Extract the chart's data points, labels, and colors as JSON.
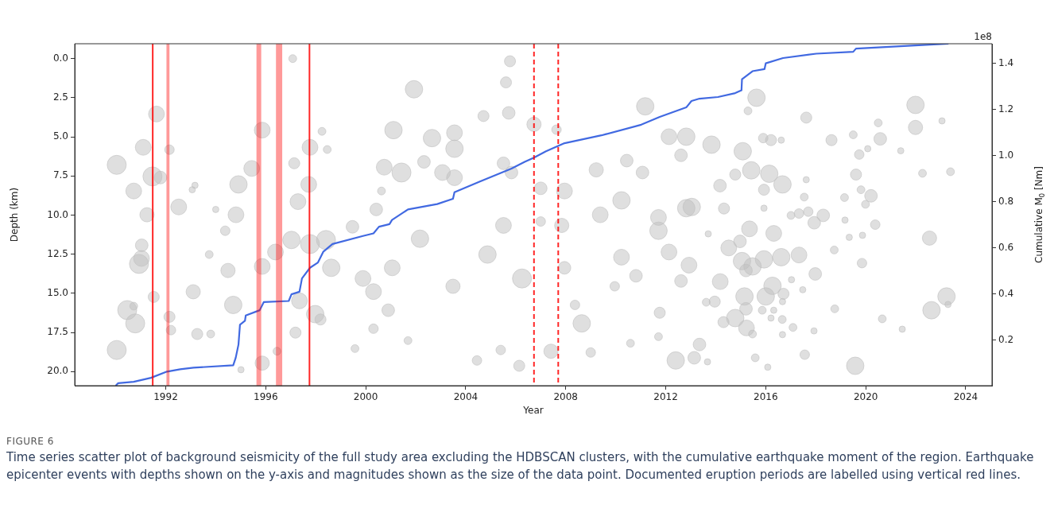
{
  "chart_data": {
    "type": "bubble",
    "xlabel": "Year",
    "ylabel": "Depth (km)",
    "y2label": "Cumulative M$_{0}$ [Nm]",
    "xlim": [
      1988.36,
      2025.05
    ],
    "xticks": [
      1992,
      1996,
      2000,
      2004,
      2008,
      2012,
      2016,
      2020,
      2024
    ],
    "ylim": [
      20.9,
      -0.95
    ],
    "yticks": [
      {
        "value": 0,
        "label": "0.0"
      },
      2.5,
      {
        "value": 5,
        "label": "5.0"
      },
      7.5,
      {
        "value": 10,
        "label": "10.0"
      },
      12.5,
      {
        "value": 15,
        "label": "15.0"
      },
      17.5,
      {
        "value": 20,
        "label": "20.0"
      }
    ],
    "y2lim": [
      0.003,
      1.485
    ],
    "y2ticks": [
      0.2,
      0.4,
      0.6,
      0.8,
      {
        "value": 1,
        "label": "1.0"
      },
      1.2,
      1.4
    ],
    "series": [
      {
        "color": "#c0c0c0",
        "x": [
          1990.04,
          1990.04,
          1990.72,
          1990.46,
          1991.1,
          1991.63,
          1991.25,
          1991.03,
          1991.79,
          1992.15,
          1992.52,
          1993.1,
          1993.26,
          1993.17,
          1994.81,
          1994.91,
          1995.44,
          1995.86,
          1995.86,
          1994.7,
          1995.86,
          1995.01,
          1994.49,
          1994.38,
          1994.0,
          1993.74,
          1993.06,
          1997.08,
          1997.77,
          1998.25,
          1998.46,
          1997.72,
          1997.14,
          1997.29,
          1997.03,
          1997.77,
          1998.41,
          1998.62,
          1997.35,
          1997.98,
          1998.19,
          1997.19,
          1996.45,
          1996.39,
          1999.47,
          1999.89,
          2000.31,
          2000.31,
          1999.57,
          2000.74,
          2000.63,
          2000.42,
          1993.8,
          1990.72,
          1990.78,
          1990.93,
          1991.04,
          1991.47,
          1992.15,
          1992.21,
          1991.52,
          2005.77,
          2005.61,
          2001.93,
          2004.71,
          2005.72,
          2006.73,
          2007.63,
          2001.11,
          2002.65,
          2003.55,
          2003.55,
          2003.55,
          2001.43,
          2002.33,
          2005.51,
          2003.07,
          2005.83,
          2007.0,
          2007.95,
          2007.0,
          2007.84,
          2005.51,
          2002.17,
          2001.06,
          2003.49,
          2004.87,
          2006.25,
          2007.95,
          2008.64,
          2007.41,
          2006.14,
          2004.45,
          2005.4,
          2001.69,
          2000.9,
          2009.22,
          2010.23,
          2009.38,
          2010.44,
          2011.07,
          2011.18,
          2012.13,
          2012.82,
          2012.61,
          2012.82,
          2011.71,
          2011.71,
          2012.13,
          2010.23,
          2010.81,
          2011.76,
          2012.4,
          2011.71,
          2009.0,
          2010.59,
          2008.37,
          2009.96,
          2012.93,
          2012.61,
          2015.63,
          2021.99,
          2015.29,
          2017.62,
          2020.5,
          2021.99,
          2023.05,
          2013.83,
          2015.08,
          2015.9,
          2016.21,
          2016.62,
          2018.63,
          2019.5,
          2020.58,
          2020.08,
          2019.74,
          2021.4,
          2015.42,
          2016.14,
          2016.67,
          2014.17,
          2014.78,
          2019.61,
          2022.27,
          2023.39,
          2017.62,
          2015.93,
          2017.54,
          2019.15,
          2020.21,
          2019.81,
          2019.99,
          2014.33,
          2015.93,
          2017.01,
          2017.33,
          2017.7,
          2018.3,
          2017.94,
          2019.17,
          2020.38,
          2015.35,
          2016.32,
          2019.34,
          2019.87,
          2022.55,
          2013.7,
          2014.52,
          2014.97,
          2015.93,
          2016.62,
          2017.33,
          2018.74,
          2019.85,
          2015.05,
          2015.47,
          2015.21,
          2014.18,
          2017.98,
          2017.03,
          2017.48,
          2015.15,
          2016.0,
          2016.27,
          2016.71,
          2013.96,
          2013.62,
          2015.21,
          2016.67,
          2015.86,
          2016.32,
          2018.76,
          2020.66,
          2021.46,
          2022.63,
          2023.23,
          2023.29,
          2014.78,
          2014.31,
          2015.23,
          2017.09,
          2016.66,
          2016.21,
          2017.93,
          2016.67,
          2015.58,
          2016.08,
          2017.56,
          2019.58,
          2013.35,
          2013.14,
          2013.67,
          2015.47,
          2013.04
        ],
        "values": [
          6.79,
          18.62,
          8.46,
          16.07,
          5.67,
          3.54,
          9.98,
          12.77,
          7.6,
          5.82,
          9.48,
          14.9,
          17.6,
          8.1,
          9.98,
          8.04,
          7.02,
          4.57,
          13.28,
          15.74,
          19.46,
          19.88,
          13.54,
          11.0,
          9.64,
          12.52,
          8.38,
          0.0,
          5.67,
          4.65,
          5.81,
          8.04,
          6.69,
          9.14,
          11.59,
          11.85,
          11.59,
          13.37,
          15.48,
          16.33,
          16.67,
          17.51,
          18.7,
          12.36,
          10.75,
          14.05,
          14.89,
          17.26,
          18.53,
          6.94,
          8.46,
          9.64,
          17.6,
          15.82,
          16.92,
          13.12,
          11.93,
          7.53,
          16.5,
          17.35,
          15.23,
          0.17,
          1.52,
          1.96,
          3.67,
          3.47,
          4.2,
          4.54,
          4.57,
          5.08,
          4.74,
          5.76,
          7.61,
          7.28,
          6.6,
          6.69,
          7.28,
          7.28,
          8.29,
          8.46,
          10.41,
          10.66,
          10.66,
          11.51,
          13.37,
          14.55,
          12.52,
          14.05,
          13.37,
          16.92,
          18.7,
          19.63,
          19.29,
          18.62,
          18.02,
          16.08,
          7.11,
          9.06,
          9.98,
          6.52,
          7.28,
          3.05,
          4.99,
          4.99,
          6.18,
          9.56,
          10.15,
          11.0,
          12.36,
          12.69,
          13.88,
          16.24,
          19.29,
          17.77,
          18.78,
          18.19,
          15.74,
          14.55,
          13.2,
          14.21,
          2.5,
          2.96,
          3.34,
          3.77,
          4.11,
          4.4,
          3.98,
          5.5,
          5.92,
          5.08,
          5.21,
          5.21,
          5.21,
          4.87,
          5.13,
          5.76,
          6.13,
          5.89,
          7.14,
          7.36,
          8.04,
          8.12,
          7.41,
          7.41,
          7.33,
          7.23,
          7.74,
          8.38,
          8.85,
          8.88,
          8.77,
          8.38,
          9.31,
          9.58,
          9.56,
          10.02,
          9.9,
          9.78,
          10.02,
          10.49,
          10.32,
          10.61,
          10.88,
          11.17,
          11.42,
          11.29,
          11.47,
          11.2,
          12.1,
          11.68,
          12.83,
          12.69,
          12.55,
          12.23,
          13.07,
          12.94,
          13.28,
          13.54,
          14.25,
          13.76,
          14.13,
          14.77,
          15.2,
          15.2,
          14.52,
          15.03,
          15.53,
          15.57,
          15.99,
          15.53,
          16.08,
          16.08,
          15.99,
          16.63,
          17.29,
          16.08,
          15.2,
          15.71,
          16.58,
          16.84,
          17.21,
          17.18,
          16.67,
          16.58,
          17.4,
          17.64,
          19.12,
          19.72,
          18.92,
          19.63,
          18.27,
          19.12,
          19.38,
          17.6,
          9.48
        ],
        "sizes": [
          1,
          1,
          0.69,
          1,
          0.69,
          0.69,
          0.56,
          0.69,
          0.44,
          0.25,
          0.69,
          0.56,
          0.34,
          0.11,
          0.69,
          0.84,
          0.69,
          0.69,
          0.69,
          0.84,
          0.56,
          0.11,
          0.56,
          0.25,
          0.11,
          0.17,
          0.11,
          0.17,
          0.69,
          0.17,
          0.17,
          0.69,
          0.34,
          0.69,
          0.84,
          1,
          1,
          0.84,
          0.69,
          0.84,
          0.34,
          0.34,
          0.17,
          0.69,
          0.44,
          0.69,
          0.69,
          0.25,
          0.17,
          0.69,
          0.17,
          0.44,
          0.17,
          0.17,
          1,
          1,
          0.44,
          1,
          0.34,
          0.25,
          0.34,
          0.34,
          0.34,
          0.84,
          0.34,
          0.44,
          0.56,
          0.25,
          0.84,
          0.84,
          0.69,
          0.84,
          0.69,
          1,
          0.44,
          0.44,
          0.69,
          0.44,
          0.44,
          0.69,
          0.25,
          0.56,
          0.69,
          0.84,
          0.69,
          0.56,
          0.84,
          1,
          0.44,
          0.84,
          0.56,
          0.34,
          0.25,
          0.25,
          0.17,
          0.44,
          0.56,
          0.84,
          0.69,
          0.44,
          0.44,
          0.84,
          0.69,
          0.84,
          0.44,
          0.84,
          0.69,
          0.84,
          0.69,
          0.69,
          0.44,
          0.34,
          0.84,
          0.17,
          0.25,
          0.17,
          0.25,
          0.25,
          0.69,
          0.44,
          0.84,
          0.84,
          0.17,
          0.34,
          0.17,
          0.56,
          0.11,
          0.84,
          0.84,
          0.25,
          0.34,
          0.11,
          0.34,
          0.17,
          0.44,
          0.11,
          0.25,
          0.11,
          0.84,
          0.84,
          0.84,
          0.44,
          0.34,
          0.34,
          0.17,
          0.17,
          0.11,
          0.34,
          0.17,
          0.17,
          0.44,
          0.17,
          0.17,
          0.34,
          0.11,
          0.17,
          0.25,
          0.25,
          0.44,
          0.44,
          0.11,
          0.25,
          0.69,
          0.69,
          0.11,
          0.11,
          0.56,
          0.11,
          0.69,
          0.44,
          0.84,
          0.84,
          0.69,
          0.17,
          0.25,
          0.84,
          0.84,
          0.44,
          0.69,
          0.44,
          0.11,
          0.11,
          0.84,
          0.84,
          0.84,
          0.34,
          0.34,
          0.17,
          0.44,
          0.11,
          0.17,
          0.11,
          0.17,
          0.17,
          0.11,
          0.84,
          0.84,
          0.11,
          0.84,
          0.34,
          0.69,
          0.17,
          0.17,
          0.11,
          0.11,
          0.11,
          0.17,
          0.11,
          0.25,
          0.84,
          0.44,
          0.44,
          0.11,
          0.17,
          0.84
        ]
      },
      {
        "type": "line",
        "axis": "y2",
        "color": "#4169e1",
        "x": [
          1990.0,
          1990.1,
          1990.72,
          1991.41,
          1992.05,
          1992.58,
          1993.11,
          1994.7,
          1994.8,
          1994.91,
          1994.97,
          1995.17,
          1995.2,
          1995.76,
          1995.92,
          1996.92,
          1997.03,
          1997.35,
          1997.45,
          1997.77,
          1998.09,
          1998.3,
          1998.67,
          1999.89,
          2000.31,
          2000.53,
          2000.95,
          2001.05,
          2001.69,
          2002.86,
          2003.49,
          2003.55,
          2004.55,
          2005.83,
          2006.36,
          2006.73,
          2007.21,
          2007.95,
          2009.43,
          2011.02,
          2011.76,
          2012.82,
          2013.03,
          2013.35,
          2014.09,
          2014.78,
          2015.03,
          2015.05,
          2015.47,
          2015.95,
          2016.0,
          2016.69,
          2018.02,
          2019.5,
          2019.61,
          2022.57,
          2023.31
        ],
        "values": [
          0.003,
          0.014,
          0.02,
          0.037,
          0.064,
          0.074,
          0.081,
          0.091,
          0.124,
          0.181,
          0.267,
          0.284,
          0.307,
          0.33,
          0.365,
          0.37,
          0.399,
          0.41,
          0.468,
          0.514,
          0.537,
          0.583,
          0.617,
          0.652,
          0.663,
          0.692,
          0.703,
          0.721,
          0.767,
          0.79,
          0.813,
          0.841,
          0.887,
          0.944,
          0.973,
          0.991,
          1.019,
          1.054,
          1.088,
          1.134,
          1.168,
          1.209,
          1.237,
          1.247,
          1.254,
          1.271,
          1.283,
          1.331,
          1.366,
          1.375,
          1.4,
          1.423,
          1.442,
          1.45,
          1.464,
          1.481,
          1.485
        ]
      }
    ],
    "ref_lines": [
      {
        "axis": "x",
        "value": 1991.48,
        "color": "#ff0000",
        "line_style": "solid"
      },
      {
        "axis": "x",
        "value": 1997.75,
        "color": "#ff0000",
        "line_style": "solid"
      },
      {
        "axis": "x",
        "value": 2006.73,
        "color": "#ff0000",
        "line_style": "dashed"
      },
      {
        "axis": "x",
        "value": 2007.7,
        "color": "#ff0000",
        "line_style": "dashed"
      }
    ],
    "bands": [
      {
        "axis": "x",
        "from": 1992.03,
        "to": 1992.15,
        "color": "#ff0000"
      },
      {
        "axis": "x",
        "from": 1995.63,
        "to": 1995.82,
        "color": "#ff0000"
      },
      {
        "axis": "x",
        "from": 1996.41,
        "to": 1996.66,
        "color": "#ff0000"
      }
    ],
    "annotations": [
      "1e8",
      "FIGURE 6",
      "Time series scatter plot of background seismicity of the full study area excluding the HDBSCAN clusters, with the cumulative earthquake moment of the region. Earthquake epicenter events with depths shown on the y-axis and magnitudes shown as the size of the data point. Documented eruption periods are labelled using vertical red lines."
    ]
  }
}
